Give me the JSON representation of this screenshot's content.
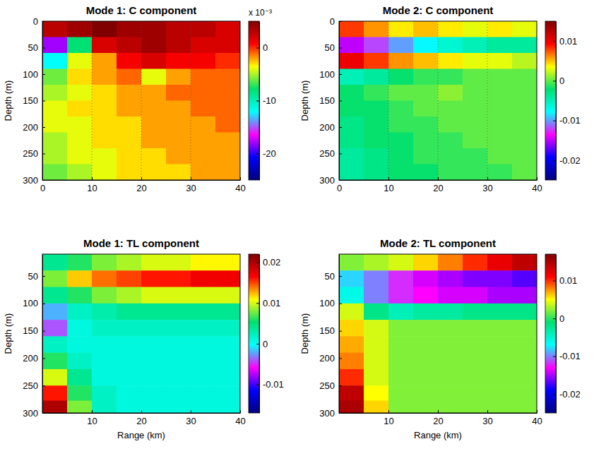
{
  "chart_data": [
    {
      "type": "heatmap",
      "title": "Mode 1: C component",
      "ylabel": "Depth (m)",
      "x": [
        2.5,
        7.5,
        12.5,
        17.5,
        22.5,
        27.5,
        32.5,
        37.5
      ],
      "y": [
        15,
        45,
        75,
        105,
        135,
        165,
        195,
        225,
        255,
        285
      ],
      "values": [
        [
          3,
          4,
          5,
          4,
          4,
          3,
          3,
          2
        ],
        [
          -18,
          -8,
          2,
          3,
          4,
          3,
          2,
          2
        ],
        [
          -12,
          -4,
          -2,
          1,
          2,
          1,
          1,
          0
        ],
        [
          -6,
          -3,
          -2,
          -1,
          -4,
          -2,
          -1,
          -1
        ],
        [
          -5,
          -4,
          -3,
          -2,
          -2,
          -1,
          -1,
          -1
        ],
        [
          -4,
          -3,
          -3,
          -2,
          -2,
          -2,
          -1,
          -1
        ],
        [
          -4,
          -4,
          -3,
          -3,
          -2,
          -2,
          -2,
          -1
        ],
        [
          -5,
          -4,
          -3,
          -3,
          -2,
          -2,
          -2,
          -2
        ],
        [
          -5,
          -4,
          -4,
          -3,
          -3,
          -2,
          -2,
          -2
        ],
        [
          -6,
          -5,
          -4,
          -3,
          -3,
          -3,
          -2,
          -2
        ]
      ],
      "xlim": [
        0,
        40
      ],
      "xticks": [
        0,
        10,
        20,
        30,
        40
      ],
      "ylim": [
        0,
        300
      ],
      "yticks": [
        0,
        50,
        100,
        150,
        200,
        250,
        300
      ],
      "clim": [
        -25,
        5
      ],
      "cticks": [
        -20,
        -10,
        0
      ],
      "colorbar_label": "x 10⁻³",
      "grid": true
    },
    {
      "type": "heatmap",
      "title": "Mode 2: C component",
      "ylabel": "Depth (m)",
      "x": [
        2.5,
        7.5,
        12.5,
        17.5,
        22.5,
        27.5,
        32.5,
        37.5
      ],
      "y": [
        15,
        45,
        75,
        105,
        135,
        165,
        195,
        225,
        255,
        285
      ],
      "values": [
        [
          0.008,
          0.006,
          0.004,
          0.005,
          0.004,
          0.003,
          0.004,
          0.003
        ],
        [
          -0.015,
          -0.012,
          -0.01,
          -0.008,
          -0.006,
          -0.005,
          -0.004,
          -0.004
        ],
        [
          0.01,
          0.008,
          0.006,
          0.005,
          0.004,
          0.003,
          0.003,
          0.002
        ],
        [
          -0.005,
          -0.004,
          -0.002,
          -0.001,
          -0.001,
          0,
          0,
          0
        ],
        [
          -0.002,
          -0.001,
          0,
          0,
          0.001,
          0,
          0,
          0
        ],
        [
          -0.002,
          -0.002,
          -0.001,
          0,
          0,
          0,
          0,
          0
        ],
        [
          -0.003,
          -0.002,
          -0.001,
          -0.001,
          0,
          0,
          0,
          0
        ],
        [
          -0.003,
          -0.002,
          -0.002,
          -0.001,
          -0.001,
          0,
          0,
          0
        ],
        [
          -0.004,
          -0.003,
          -0.002,
          -0.001,
          -0.001,
          -0.001,
          0,
          0
        ],
        [
          -0.004,
          -0.003,
          -0.002,
          -0.002,
          -0.001,
          -0.001,
          -0.001,
          0
        ]
      ],
      "xlim": [
        0,
        40
      ],
      "xticks": [
        0,
        10,
        20,
        30,
        40
      ],
      "ylim": [
        0,
        300
      ],
      "yticks": [
        0,
        50,
        100,
        150,
        200,
        250,
        300
      ],
      "clim": [
        -0.025,
        0.015
      ],
      "cticks": [
        -0.02,
        -0.01,
        0,
        0.01
      ],
      "grid": true
    },
    {
      "type": "heatmap",
      "title": "Mode 1: TL component",
      "xlabel": "Range (km)",
      "ylabel": "Depth (m)",
      "x": [
        2.5,
        7.5,
        12.5,
        17.5,
        22.5,
        27.5,
        32.5,
        37.5
      ],
      "y": [
        25,
        55,
        85,
        115,
        145,
        175,
        205,
        235,
        265,
        290
      ],
      "values": [
        [
          0.004,
          0.006,
          0.008,
          0.009,
          0.01,
          0.01,
          0.011,
          0.011
        ],
        [
          0.008,
          0.012,
          0.014,
          0.015,
          0.016,
          0.016,
          0.017,
          0.017
        ],
        [
          0.004,
          0.006,
          0.008,
          0.009,
          0.01,
          0.01,
          0.01,
          0.01
        ],
        [
          -0.002,
          0.002,
          0.003,
          0.004,
          0.004,
          0.004,
          0.004,
          0.004
        ],
        [
          -0.004,
          0.001,
          0.002,
          0.002,
          0.002,
          0.002,
          0.002,
          0.002
        ],
        [
          0.002,
          0.001,
          0.001,
          0.001,
          0.001,
          0.001,
          0.001,
          0.001
        ],
        [
          0.006,
          0.002,
          0.001,
          0.001,
          0.001,
          0.001,
          0.001,
          0.001
        ],
        [
          0.01,
          0.004,
          0.001,
          0.001,
          0.001,
          0.001,
          0.001,
          0.001
        ],
        [
          0.016,
          0.006,
          0.002,
          0.001,
          0.001,
          0.001,
          0.001,
          0.001
        ],
        [
          0.02,
          0.008,
          0.002,
          0.001,
          0.001,
          0.001,
          0.001,
          0.001
        ]
      ],
      "xlim": [
        0,
        40
      ],
      "xticks": [
        10,
        20,
        30,
        40
      ],
      "ylim": [
        10,
        300
      ],
      "yticks": [
        50,
        100,
        150,
        200,
        250,
        300
      ],
      "clim": [
        -0.017,
        0.022
      ],
      "cticks": [
        -0.01,
        0,
        0.01,
        0.02
      ]
    },
    {
      "type": "heatmap",
      "title": "Mode 2: TL component",
      "xlabel": "Range (km)",
      "ylabel": "Depth (m)",
      "x": [
        2.5,
        7.5,
        12.5,
        17.5,
        22.5,
        27.5,
        32.5,
        37.5
      ],
      "y": [
        25,
        55,
        85,
        115,
        145,
        175,
        205,
        235,
        265,
        290
      ],
      "values": [
        [
          0.002,
          0.003,
          0.004,
          0.006,
          0.008,
          0.01,
          0.012,
          0.014
        ],
        [
          -0.008,
          -0.01,
          -0.012,
          -0.014,
          -0.015,
          -0.016,
          -0.016,
          -0.017
        ],
        [
          -0.006,
          -0.01,
          -0.012,
          -0.013,
          -0.014,
          -0.014,
          -0.015,
          -0.015
        ],
        [
          0.004,
          -0.002,
          -0.004,
          -0.003,
          -0.003,
          -0.002,
          -0.002,
          -0.002
        ],
        [
          0.006,
          0.004,
          0.002,
          0.002,
          0.002,
          0.002,
          0.002,
          0.002
        ],
        [
          0.007,
          0.004,
          0.002,
          0.002,
          0.002,
          0.002,
          0.002,
          0.002
        ],
        [
          0.008,
          0.004,
          0.002,
          0.002,
          0.002,
          0.002,
          0.002,
          0.002
        ],
        [
          0.01,
          0.004,
          0.002,
          0.002,
          0.002,
          0.002,
          0.002,
          0.002
        ],
        [
          0.014,
          0.005,
          0.002,
          0.002,
          0.002,
          0.002,
          0.002,
          0.002
        ],
        [
          0.015,
          0.006,
          0.002,
          0.002,
          0.002,
          0.002,
          0.002,
          0.002
        ]
      ],
      "xlim": [
        0,
        40
      ],
      "xticks": [
        10,
        20,
        30,
        40
      ],
      "ylim": [
        10,
        300
      ],
      "yticks": [
        50,
        100,
        150,
        200,
        250,
        300
      ],
      "clim": [
        -0.025,
        0.017
      ],
      "cticks": [
        -0.02,
        -0.01,
        0,
        0.01
      ]
    }
  ]
}
